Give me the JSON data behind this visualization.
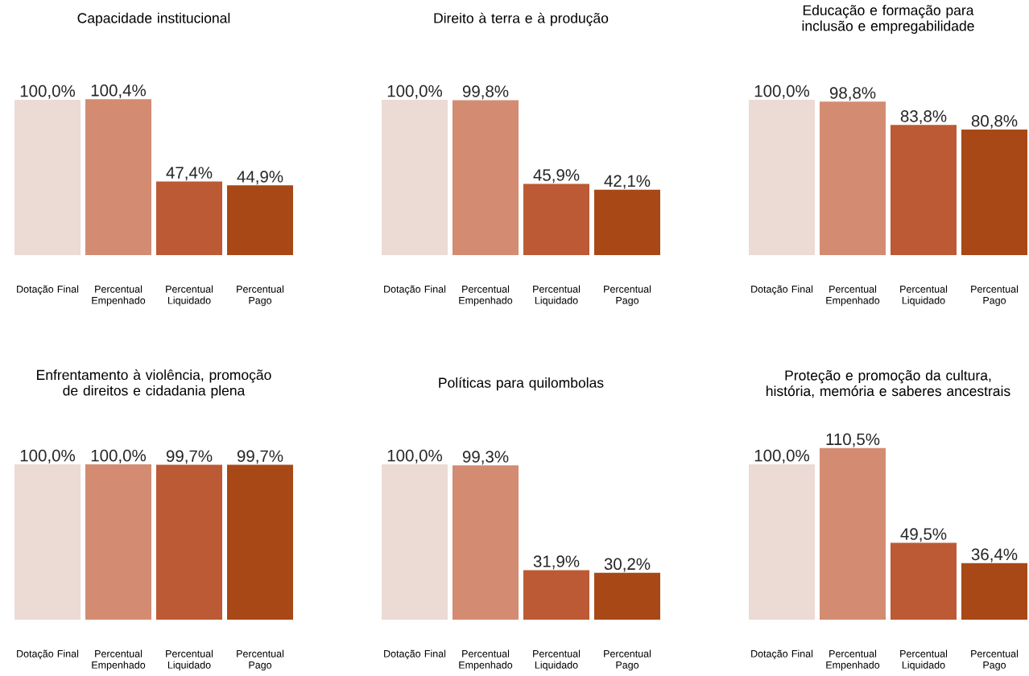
{
  "chart_data": [
    {
      "type": "bar",
      "title": "Capacidade institucional",
      "categories": [
        "Dotação Final",
        "Percentual Empenhado",
        "Percentual Liquidado",
        "Percentual Pago"
      ],
      "values": [
        100.0,
        100.4,
        47.4,
        44.9
      ],
      "value_labels": [
        "100,0%",
        "100,4%",
        "47,4%",
        "44,9%"
      ],
      "colors": [
        "#ebdbd4",
        "#d38c72",
        "#bb5a35",
        "#a84817"
      ]
    },
    {
      "type": "bar",
      "title": "Direito à terra e à produção",
      "categories": [
        "Dotação Final",
        "Percentual Empenhado",
        "Percentual Liquidado",
        "Percentual Pago"
      ],
      "values": [
        100.0,
        99.8,
        45.9,
        42.1
      ],
      "value_labels": [
        "100,0%",
        "99,8%",
        "45,9%",
        "42,1%"
      ],
      "colors": [
        "#ebdbd4",
        "#d38c72",
        "#bb5a35",
        "#a84817"
      ]
    },
    {
      "type": "bar",
      "title": "Educação e formação para inclusão e empregabilidade",
      "categories": [
        "Dotação Final",
        "Percentual Empenhado",
        "Percentual Liquidado",
        "Percentual Pago"
      ],
      "values": [
        100.0,
        98.8,
        83.8,
        80.8
      ],
      "value_labels": [
        "100,0%",
        "98,8%",
        "83,8%",
        "80,8%"
      ],
      "colors": [
        "#ebdbd4",
        "#d38c72",
        "#bb5a35",
        "#a84817"
      ]
    },
    {
      "type": "bar",
      "title": "Enfrentamento à violência, promoção de direitos e cidadania plena",
      "categories": [
        "Dotação Final",
        "Percentual Empenhado",
        "Percentual Liquidado",
        "Percentual Pago"
      ],
      "values": [
        100.0,
        100.0,
        99.7,
        99.7
      ],
      "value_labels": [
        "100,0%",
        "100,0%",
        "99,7%",
        "99,7%"
      ],
      "colors": [
        "#ebdbd4",
        "#d38c72",
        "#bb5a35",
        "#a84817"
      ]
    },
    {
      "type": "bar",
      "title": "Políticas para quilombolas",
      "categories": [
        "Dotação Final",
        "Percentual Empenhado",
        "Percentual Liquidado",
        "Percentual Pago"
      ],
      "values": [
        100.0,
        99.3,
        31.9,
        30.2
      ],
      "value_labels": [
        "100,0%",
        "99,3%",
        "31,9%",
        "30,2%"
      ],
      "colors": [
        "#ebdbd4",
        "#d38c72",
        "#bb5a35",
        "#a84817"
      ]
    },
    {
      "type": "bar",
      "title": "Proteção e promoção da cultura, história, memória e saberes ancestrais",
      "categories": [
        "Dotação Final",
        "Percentual Empenhado",
        "Percentual Liquidado",
        "Percentual Pago"
      ],
      "values": [
        100.0,
        110.5,
        49.5,
        36.4
      ],
      "value_labels": [
        "100,0%",
        "110,5%",
        "49,5%",
        "36,4%"
      ],
      "colors": [
        "#ebdbd4",
        "#d38c72",
        "#bb5a35",
        "#a84817"
      ]
    }
  ]
}
